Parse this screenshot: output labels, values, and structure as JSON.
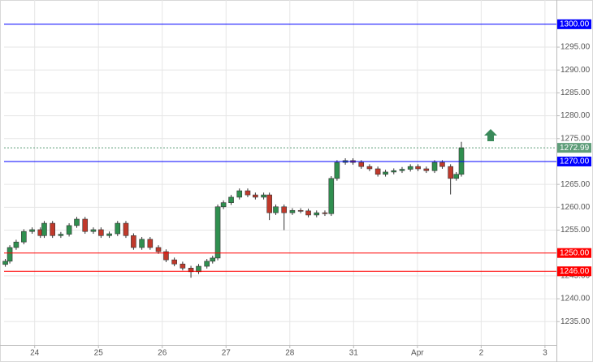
{
  "chart_data": {
    "type": "candlestick",
    "xlim": [
      -0.48,
      8.18
    ],
    "ylim": [
      1229.9,
      1305.3
    ],
    "xticks": [
      {
        "value": 0,
        "label": "24"
      },
      {
        "value": 1,
        "label": "25"
      },
      {
        "value": 2,
        "label": "26"
      },
      {
        "value": 3,
        "label": "27"
      },
      {
        "value": 4,
        "label": "28"
      },
      {
        "value": 5,
        "label": "31"
      },
      {
        "value": 6,
        "label": "Apr"
      },
      {
        "value": 7,
        "label": "2"
      },
      {
        "value": 8,
        "label": "3"
      }
    ],
    "yticks": [
      {
        "value": 1235,
        "label": "1235.00"
      },
      {
        "value": 1240,
        "label": "1240.00"
      },
      {
        "value": 1245,
        "label": "1245.00"
      },
      {
        "value": 1255,
        "label": "1255.00"
      },
      {
        "value": 1260,
        "label": "1260.00"
      },
      {
        "value": 1265,
        "label": "1265.00"
      },
      {
        "value": 1275,
        "label": "1275.00"
      },
      {
        "value": 1280,
        "label": "1280.00"
      },
      {
        "value": 1285,
        "label": "1285.00"
      },
      {
        "value": 1290,
        "label": "1290.00"
      },
      {
        "value": 1295,
        "label": "1295.00"
      }
    ],
    "grid": true,
    "up_color": "#2f8f4f",
    "down_color": "#c0392b",
    "x": [
      -0.46,
      -0.39,
      -0.29,
      -0.17,
      -0.04,
      0.09,
      0.15,
      0.28,
      0.41,
      0.54,
      0.66,
      0.79,
      0.92,
      1.04,
      1.17,
      1.3,
      1.43,
      1.55,
      1.68,
      1.81,
      1.94,
      2.06,
      2.19,
      2.32,
      2.45,
      2.57,
      2.7,
      2.79,
      2.87,
      2.96,
      3.08,
      3.21,
      3.34,
      3.46,
      3.59,
      3.68,
      3.78,
      3.91,
      4.04,
      4.17,
      4.29,
      4.42,
      4.55,
      4.65,
      4.74,
      4.87,
      4.99,
      5.12,
      5.25,
      5.38,
      5.5,
      5.63,
      5.76,
      5.89,
      6.01,
      6.14,
      6.27,
      6.39,
      6.52,
      6.61,
      6.69
    ],
    "open": [
      1247.5,
      1248.2,
      1251.2,
      1252.4,
      1254.7,
      1255.1,
      1253.8,
      1256.5,
      1253.8,
      1254.1,
      1256.0,
      1257.4,
      1254.7,
      1255.1,
      1253.8,
      1254.2,
      1256.5,
      1253.8,
      1251.2,
      1253.0,
      1251.2,
      1250.3,
      1248.5,
      1247.6,
      1246.7,
      1245.9,
      1247.1,
      1248.2,
      1248.9,
      1260.1,
      1261.0,
      1262.2,
      1263.6,
      1262.7,
      1262.2,
      1262.7,
      1258.8,
      1260.1,
      1258.8,
      1259.3,
      1259.2,
      1258.3,
      1258.8,
      1258.6,
      1266.3,
      1269.8,
      1270.2,
      1269.8,
      1268.9,
      1268.4,
      1267.2,
      1267.7,
      1268.0,
      1268.3,
      1268.9,
      1268.4,
      1268.0,
      1269.8,
      1268.9,
      1266.3,
      1267.2
    ],
    "high": [
      1248.7,
      1251.7,
      1252.9,
      1255.2,
      1255.6,
      1255.6,
      1257.0,
      1257.0,
      1254.6,
      1256.5,
      1257.9,
      1257.9,
      1255.6,
      1255.6,
      1254.7,
      1257.0,
      1257.0,
      1254.3,
      1253.5,
      1253.5,
      1251.7,
      1250.8,
      1249.0,
      1248.1,
      1247.2,
      1247.6,
      1248.7,
      1249.4,
      1260.6,
      1261.5,
      1262.7,
      1264.1,
      1264.1,
      1263.2,
      1263.2,
      1263.2,
      1260.6,
      1260.6,
      1259.8,
      1259.8,
      1259.7,
      1259.3,
      1259.3,
      1266.8,
      1270.3,
      1270.7,
      1270.7,
      1270.3,
      1269.4,
      1268.9,
      1268.2,
      1268.5,
      1268.8,
      1269.4,
      1269.4,
      1268.9,
      1270.3,
      1270.3,
      1269.4,
      1267.7,
      1274.3
    ],
    "low": [
      1247.0,
      1247.7,
      1250.7,
      1251.9,
      1254.2,
      1253.3,
      1253.3,
      1253.3,
      1253.3,
      1253.6,
      1255.5,
      1254.2,
      1254.2,
      1253.3,
      1253.3,
      1253.7,
      1253.3,
      1250.7,
      1250.7,
      1250.7,
      1249.8,
      1248.0,
      1247.1,
      1246.2,
      1244.6,
      1245.4,
      1246.6,
      1247.7,
      1248.4,
      1259.6,
      1260.5,
      1261.7,
      1262.2,
      1261.7,
      1261.7,
      1257.2,
      1258.3,
      1255.0,
      1258.3,
      1258.7,
      1257.8,
      1257.8,
      1258.1,
      1258.1,
      1265.8,
      1269.3,
      1269.3,
      1268.4,
      1267.9,
      1266.7,
      1266.7,
      1267.2,
      1267.5,
      1267.8,
      1267.9,
      1267.5,
      1267.5,
      1268.4,
      1262.8,
      1265.8,
      1266.7
    ],
    "close": [
      1248.2,
      1251.2,
      1252.4,
      1254.7,
      1255.1,
      1253.8,
      1256.5,
      1253.8,
      1254.1,
      1256.0,
      1257.4,
      1254.7,
      1255.1,
      1253.8,
      1254.2,
      1256.5,
      1253.8,
      1251.2,
      1253.0,
      1251.2,
      1250.3,
      1248.5,
      1247.6,
      1246.7,
      1245.9,
      1247.1,
      1248.2,
      1248.9,
      1260.1,
      1261.0,
      1262.2,
      1263.6,
      1262.7,
      1262.2,
      1262.7,
      1258.8,
      1260.1,
      1258.8,
      1259.3,
      1259.2,
      1258.3,
      1258.8,
      1258.6,
      1266.3,
      1269.8,
      1270.2,
      1269.8,
      1268.9,
      1268.4,
      1267.2,
      1267.7,
      1268.0,
      1268.3,
      1268.9,
      1268.4,
      1268.0,
      1269.8,
      1268.9,
      1266.3,
      1267.2,
      1272.99
    ],
    "levels": [
      {
        "value": 1300,
        "label": "1300.00",
        "color": "#0000ff"
      },
      {
        "value": 1270,
        "label": "1270.00",
        "color": "#0000ff"
      },
      {
        "value": 1250,
        "label": "1250.00",
        "color": "#ff0000"
      },
      {
        "value": 1246,
        "label": "1246.00",
        "color": "#ff0000"
      }
    ],
    "current_price": {
      "value": 1272.99,
      "label": "1272.99",
      "color": "#5f9e7a"
    }
  }
}
